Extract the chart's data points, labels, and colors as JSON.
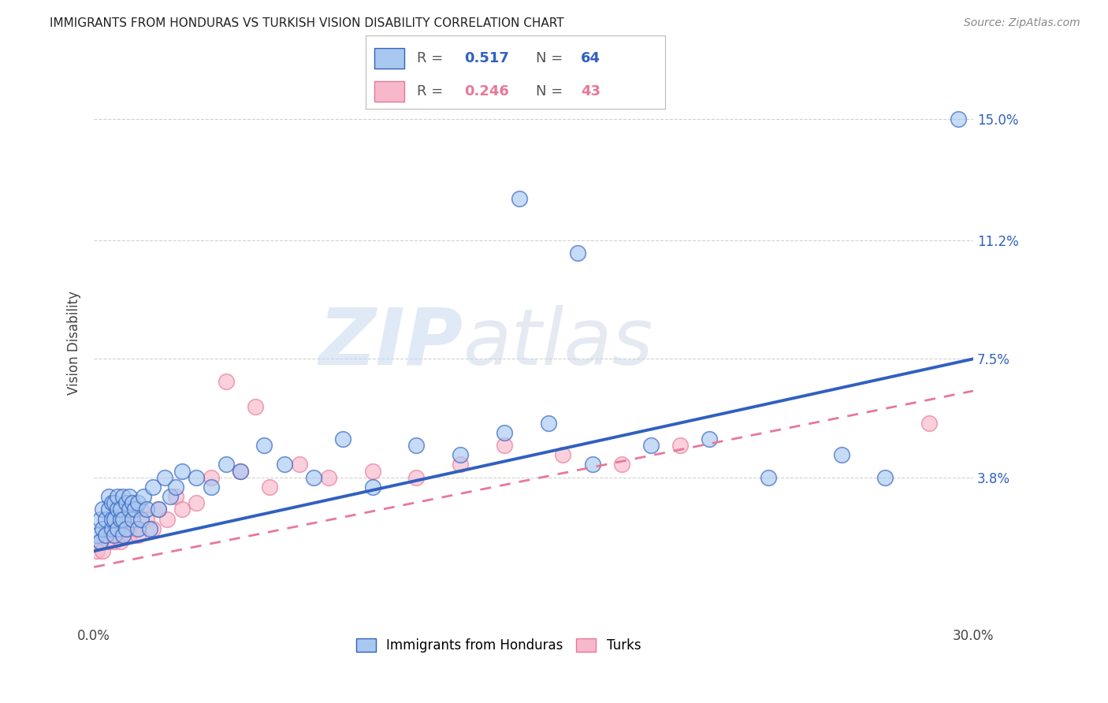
{
  "title": "IMMIGRANTS FROM HONDURAS VS TURKISH VISION DISABILITY CORRELATION CHART",
  "source": "Source: ZipAtlas.com",
  "ylabel": "Vision Disability",
  "xlim": [
    0.0,
    0.3
  ],
  "ylim": [
    -0.008,
    0.168
  ],
  "xticks": [
    0.0,
    0.05,
    0.1,
    0.15,
    0.2,
    0.25,
    0.3
  ],
  "xtick_labels": [
    "0.0%",
    "",
    "",
    "",
    "",
    "",
    "30.0%"
  ],
  "ytick_labels_right": [
    "15.0%",
    "11.2%",
    "7.5%",
    "3.8%"
  ],
  "ytick_vals_right": [
    0.15,
    0.112,
    0.075,
    0.038
  ],
  "color_blue": "#A8C8F0",
  "color_pink": "#F8B8CC",
  "line_blue": "#3060C0",
  "line_pink": "#E87898",
  "watermark_zip": "ZIP",
  "watermark_atlas": "atlas",
  "background": "#FFFFFF",
  "blue_intercept": 0.015,
  "blue_slope": 0.2,
  "pink_intercept": 0.01,
  "pink_slope": 0.18,
  "blue_x": [
    0.001,
    0.002,
    0.002,
    0.003,
    0.003,
    0.004,
    0.004,
    0.005,
    0.005,
    0.006,
    0.006,
    0.006,
    0.007,
    0.007,
    0.007,
    0.008,
    0.008,
    0.008,
    0.009,
    0.009,
    0.01,
    0.01,
    0.01,
    0.011,
    0.011,
    0.012,
    0.012,
    0.013,
    0.013,
    0.014,
    0.015,
    0.015,
    0.016,
    0.017,
    0.018,
    0.019,
    0.02,
    0.022,
    0.024,
    0.026,
    0.028,
    0.03,
    0.035,
    0.04,
    0.045,
    0.05,
    0.058,
    0.065,
    0.075,
    0.085,
    0.095,
    0.11,
    0.125,
    0.14,
    0.155,
    0.17,
    0.19,
    0.21,
    0.23,
    0.255,
    0.27,
    0.145,
    0.165,
    0.295
  ],
  "blue_y": [
    0.02,
    0.025,
    0.018,
    0.028,
    0.022,
    0.02,
    0.025,
    0.028,
    0.032,
    0.022,
    0.025,
    0.03,
    0.02,
    0.025,
    0.03,
    0.022,
    0.028,
    0.032,
    0.025,
    0.028,
    0.02,
    0.025,
    0.032,
    0.022,
    0.03,
    0.028,
    0.032,
    0.025,
    0.03,
    0.028,
    0.022,
    0.03,
    0.025,
    0.032,
    0.028,
    0.022,
    0.035,
    0.028,
    0.038,
    0.032,
    0.035,
    0.04,
    0.038,
    0.035,
    0.042,
    0.04,
    0.048,
    0.042,
    0.038,
    0.05,
    0.035,
    0.048,
    0.045,
    0.052,
    0.055,
    0.042,
    0.048,
    0.05,
    0.038,
    0.045,
    0.038,
    0.125,
    0.108,
    0.15
  ],
  "pink_x": [
    0.001,
    0.002,
    0.003,
    0.004,
    0.005,
    0.006,
    0.007,
    0.007,
    0.008,
    0.008,
    0.009,
    0.009,
    0.01,
    0.01,
    0.011,
    0.011,
    0.012,
    0.013,
    0.014,
    0.015,
    0.016,
    0.018,
    0.02,
    0.022,
    0.025,
    0.028,
    0.03,
    0.035,
    0.04,
    0.05,
    0.06,
    0.07,
    0.08,
    0.095,
    0.11,
    0.125,
    0.14,
    0.16,
    0.18,
    0.2,
    0.055,
    0.045,
    0.285
  ],
  "pink_y": [
    0.015,
    0.018,
    0.015,
    0.02,
    0.018,
    0.02,
    0.022,
    0.018,
    0.02,
    0.025,
    0.018,
    0.022,
    0.02,
    0.025,
    0.022,
    0.028,
    0.02,
    0.025,
    0.022,
    0.02,
    0.028,
    0.025,
    0.022,
    0.028,
    0.025,
    0.032,
    0.028,
    0.03,
    0.038,
    0.04,
    0.035,
    0.042,
    0.038,
    0.04,
    0.038,
    0.042,
    0.048,
    0.045,
    0.042,
    0.048,
    0.06,
    0.068,
    0.055
  ]
}
